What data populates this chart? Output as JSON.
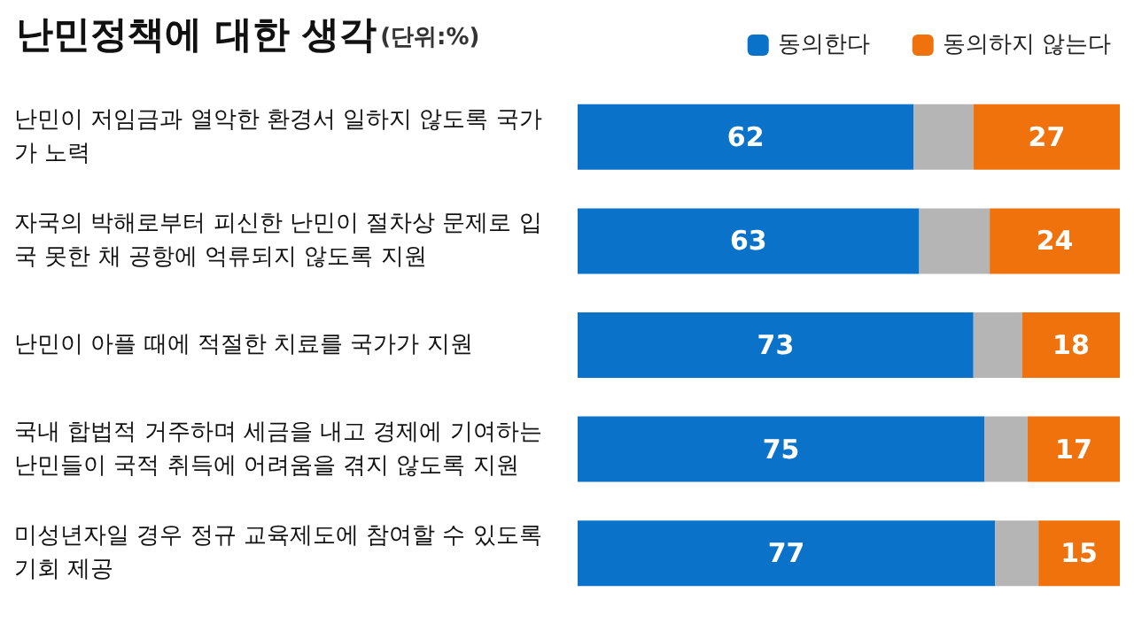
{
  "chart_data": {
    "type": "bar",
    "orientation": "horizontal",
    "stacked": true,
    "title": "난민정책에 대한 생각",
    "subtitle": "(단위:%)",
    "categories": [
      "난민이 저임금과 열악한 환경서 일하지 않도록 국가가 노력",
      "자국의 박해로부터 피신한 난민이 절차상 문제로 입국 못한 채 공항에 억류되지 않도록 지원",
      "난민이 아플 때에 적절한 치료를 국가가 지원",
      "국내 합법적 거주하며 세금을 내고 경제에 기여하는 난민들이 국적 취득에 어려움을 겪지 않도록 지원",
      "미성년자일 경우 정규 교육제도에 참여할 수 있도록 기회 제공"
    ],
    "series": [
      {
        "name": "동의한다",
        "color": "#0a72c8",
        "values": [
          62,
          63,
          73,
          75,
          77
        ],
        "value_labels": [
          "62",
          "63",
          "73",
          "75",
          "77"
        ]
      },
      {
        "color": "#b5b5b5",
        "values": [
          11,
          13,
          9,
          8,
          8
        ]
      },
      {
        "name": "동의하지 않는다",
        "color": "#f0720c",
        "values": [
          27,
          24,
          18,
          17,
          15
        ],
        "value_labels": [
          "27",
          "24",
          "18",
          "17",
          "15"
        ]
      }
    ],
    "xlim": [
      0,
      100
    ],
    "tick_labels": "y",
    "grid": false,
    "legend": "top right"
  }
}
